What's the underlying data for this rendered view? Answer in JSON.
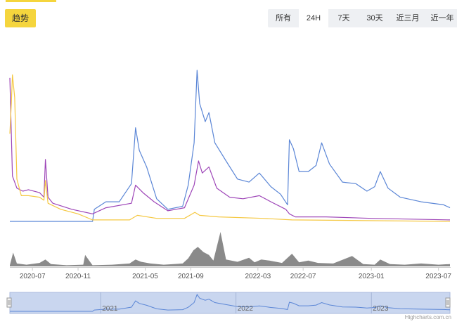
{
  "tabs": {
    "trend_label": "趋势"
  },
  "range_selector": {
    "buttons": [
      "所有",
      "24H",
      "7天",
      "30天",
      "近三月",
      "近一年"
    ],
    "selected_index": 1
  },
  "credits": "Highcharts.com.cn",
  "colors": {
    "series_blue": "#5b86d6",
    "series_purple": "#9e46b8",
    "series_yellow": "#f5c842",
    "volume": "#8a8a8a",
    "navigator_fill": "#c9d6ef",
    "accent": "#f5d53d"
  },
  "chart_data": {
    "type": "line",
    "title": "",
    "xlabel": "",
    "ylabel": "",
    "x_ticks": [
      "2020-07",
      "2020-11",
      "2021-05",
      "2021-09",
      "2022-03",
      "2022-07",
      "2023-01",
      "2023-07"
    ],
    "navigator_ticks": [
      "2021",
      "2022",
      "2023"
    ],
    "x_range": [
      "2020-05",
      "2023-08"
    ],
    "y_range": [
      0,
      100
    ],
    "grid": false,
    "legend": "none",
    "series": [
      {
        "color": "#5b86d6",
        "points": [
          [
            "2020-05-01",
            0
          ],
          [
            "2020-12-10",
            0
          ],
          [
            "2020-12-15",
            8
          ],
          [
            "2021-01-15",
            13
          ],
          [
            "2021-02-20",
            13
          ],
          [
            "2021-03-25",
            25
          ],
          [
            "2021-04-05",
            62
          ],
          [
            "2021-04-15",
            47
          ],
          [
            "2021-05-05",
            36
          ],
          [
            "2021-06-01",
            15
          ],
          [
            "2021-07-01",
            8
          ],
          [
            "2021-08-10",
            10
          ],
          [
            "2021-08-25",
            24
          ],
          [
            "2021-09-10",
            52
          ],
          [
            "2021-09-18",
            100
          ],
          [
            "2021-09-25",
            78
          ],
          [
            "2021-10-10",
            66
          ],
          [
            "2021-10-20",
            72
          ],
          [
            "2021-11-05",
            52
          ],
          [
            "2021-12-05",
            40
          ],
          [
            "2022-01-05",
            28
          ],
          [
            "2022-02-05",
            26
          ],
          [
            "2022-03-05",
            32
          ],
          [
            "2022-04-05",
            23
          ],
          [
            "2022-05-01",
            18
          ],
          [
            "2022-05-20",
            11
          ],
          [
            "2022-05-25",
            54
          ],
          [
            "2022-06-05",
            48
          ],
          [
            "2022-06-20",
            33
          ],
          [
            "2022-07-15",
            33
          ],
          [
            "2022-08-05",
            37
          ],
          [
            "2022-08-20",
            52
          ],
          [
            "2022-09-10",
            38
          ],
          [
            "2022-10-15",
            26
          ],
          [
            "2022-11-20",
            25
          ],
          [
            "2022-12-20",
            20
          ],
          [
            "2023-01-10",
            23
          ],
          [
            "2023-01-25",
            33
          ],
          [
            "2023-02-15",
            22
          ],
          [
            "2023-03-20",
            16
          ],
          [
            "2023-05-15",
            13
          ],
          [
            "2023-07-15",
            11
          ],
          [
            "2023-08-01",
            9
          ]
        ]
      },
      {
        "color": "#9e46b8",
        "points": [
          [
            "2020-05-01",
            95
          ],
          [
            "2020-05-08",
            30
          ],
          [
            "2020-05-20",
            22
          ],
          [
            "2020-06-05",
            20
          ],
          [
            "2020-06-20",
            21
          ],
          [
            "2020-07-20",
            19
          ],
          [
            "2020-08-01",
            16
          ],
          [
            "2020-08-05",
            41
          ],
          [
            "2020-08-12",
            16
          ],
          [
            "2020-08-25",
            12
          ],
          [
            "2020-10-15",
            8
          ],
          [
            "2020-12-10",
            5
          ],
          [
            "2021-01-15",
            9
          ],
          [
            "2021-03-25",
            12
          ],
          [
            "2021-04-05",
            24
          ],
          [
            "2021-04-25",
            19
          ],
          [
            "2021-05-25",
            13
          ],
          [
            "2021-07-01",
            7
          ],
          [
            "2021-08-15",
            9
          ],
          [
            "2021-09-10",
            24
          ],
          [
            "2021-09-22",
            40
          ],
          [
            "2021-10-02",
            32
          ],
          [
            "2021-10-20",
            36
          ],
          [
            "2021-11-10",
            22
          ],
          [
            "2021-12-15",
            16
          ],
          [
            "2022-01-20",
            15
          ],
          [
            "2022-03-05",
            17
          ],
          [
            "2022-04-05",
            13
          ],
          [
            "2022-05-15",
            8
          ],
          [
            "2022-05-25",
            5
          ],
          [
            "2022-06-10",
            3
          ],
          [
            "2022-09-01",
            3
          ],
          [
            "2023-01-01",
            2
          ],
          [
            "2023-08-01",
            1
          ]
        ]
      },
      {
        "color": "#f5c842",
        "points": [
          [
            "2020-05-01",
            58
          ],
          [
            "2020-05-05",
            78
          ],
          [
            "2020-05-08",
            97
          ],
          [
            "2020-05-14",
            82
          ],
          [
            "2020-05-20",
            28
          ],
          [
            "2020-06-01",
            17
          ],
          [
            "2020-06-20",
            17
          ],
          [
            "2020-07-20",
            16
          ],
          [
            "2020-08-01",
            14
          ],
          [
            "2020-08-05",
            27
          ],
          [
            "2020-08-12",
            12
          ],
          [
            "2020-09-15",
            8
          ],
          [
            "2020-11-01",
            5
          ],
          [
            "2020-12-10",
            1
          ],
          [
            "2021-03-20",
            1
          ],
          [
            "2021-04-10",
            4
          ],
          [
            "2021-06-01",
            2
          ],
          [
            "2021-08-15",
            2
          ],
          [
            "2021-09-12",
            6
          ],
          [
            "2021-09-25",
            4
          ],
          [
            "2021-11-15",
            3
          ],
          [
            "2022-03-15",
            2
          ],
          [
            "2022-06-01",
            1
          ],
          [
            "2023-08-01",
            0
          ]
        ]
      }
    ],
    "volume": {
      "color": "#8a8a8a",
      "points": [
        [
          "2020-05-01",
          2
        ],
        [
          "2020-05-10",
          24
        ],
        [
          "2020-05-20",
          5
        ],
        [
          "2020-06-15",
          3
        ],
        [
          "2020-07-20",
          6
        ],
        [
          "2020-08-05",
          12
        ],
        [
          "2020-08-20",
          4
        ],
        [
          "2020-10-01",
          2
        ],
        [
          "2020-11-15",
          3
        ],
        [
          "2020-11-20",
          20
        ],
        [
          "2020-12-10",
          2
        ],
        [
          "2021-02-01",
          3
        ],
        [
          "2021-03-20",
          5
        ],
        [
          "2021-04-05",
          12
        ],
        [
          "2021-04-20",
          8
        ],
        [
          "2021-05-15",
          5
        ],
        [
          "2021-06-20",
          3
        ],
        [
          "2021-08-10",
          5
        ],
        [
          "2021-08-25",
          14
        ],
        [
          "2021-09-08",
          28
        ],
        [
          "2021-09-20",
          34
        ],
        [
          "2021-10-05",
          25
        ],
        [
          "2021-10-20",
          20
        ],
        [
          "2021-11-01",
          10
        ],
        [
          "2021-11-20",
          60
        ],
        [
          "2021-12-05",
          12
        ],
        [
          "2022-01-05",
          8
        ],
        [
          "2022-02-05",
          15
        ],
        [
          "2022-02-20",
          7
        ],
        [
          "2022-03-10",
          12
        ],
        [
          "2022-04-01",
          10
        ],
        [
          "2022-05-05",
          6
        ],
        [
          "2022-06-01",
          22
        ],
        [
          "2022-06-20",
          7
        ],
        [
          "2022-07-15",
          10
        ],
        [
          "2022-08-10",
          6
        ],
        [
          "2022-09-20",
          5
        ],
        [
          "2022-11-10",
          18
        ],
        [
          "2022-12-10",
          4
        ],
        [
          "2023-01-10",
          3
        ],
        [
          "2023-01-25",
          12
        ],
        [
          "2023-02-20",
          4
        ],
        [
          "2023-04-01",
          3
        ],
        [
          "2023-05-15",
          5
        ],
        [
          "2023-07-01",
          3
        ],
        [
          "2023-08-01",
          4
        ]
      ]
    }
  }
}
